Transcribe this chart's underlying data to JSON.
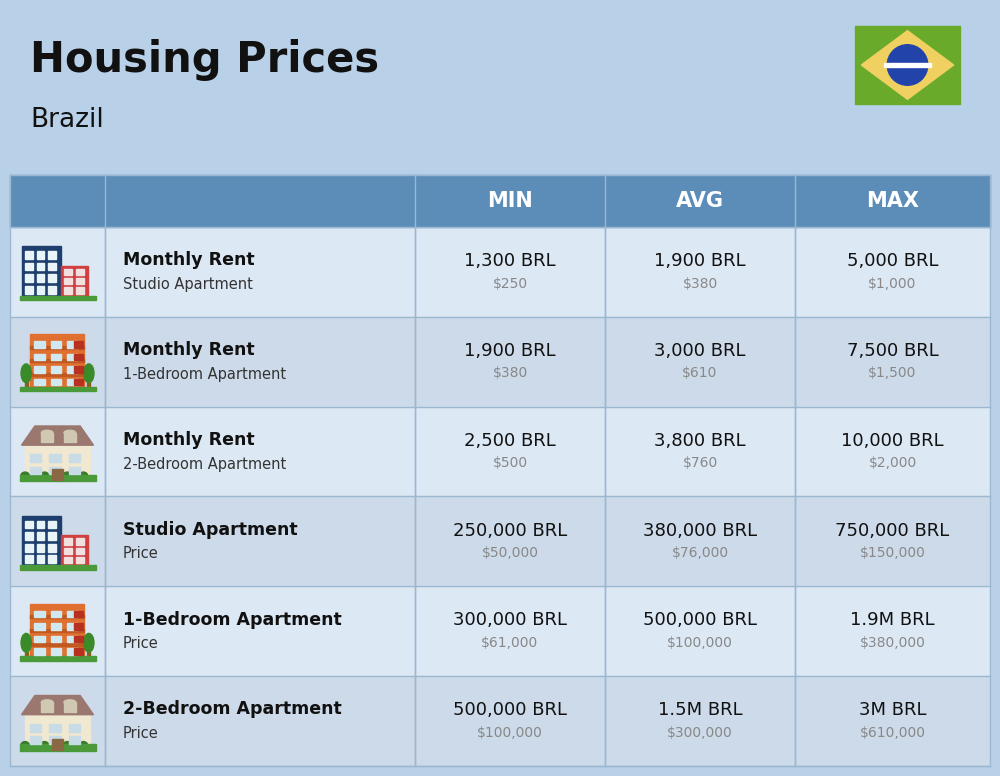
{
  "title": "Housing Prices",
  "subtitle": "Brazil",
  "background_color": "#b8d0e8",
  "header_bg_color": "#5b8db8",
  "header_text_color": "#ffffff",
  "col_divider_color": "#8aaece",
  "columns": [
    "MIN",
    "AVG",
    "MAX"
  ],
  "rows": [
    {
      "label_bold": "Monthly Rent",
      "label_sub": "Studio Apartment",
      "min_brl": "1,300 BRL",
      "min_usd": "$250",
      "avg_brl": "1,900 BRL",
      "avg_usd": "$380",
      "max_brl": "5,000 BRL",
      "max_usd": "$1,000",
      "icon_type": "studio_blue"
    },
    {
      "label_bold": "Monthly Rent",
      "label_sub": "1-Bedroom Apartment",
      "min_brl": "1,900 BRL",
      "min_usd": "$380",
      "avg_brl": "3,000 BRL",
      "avg_usd": "$610",
      "max_brl": "7,500 BRL",
      "max_usd": "$1,500",
      "icon_type": "apt_orange"
    },
    {
      "label_bold": "Monthly Rent",
      "label_sub": "2-Bedroom Apartment",
      "min_brl": "2,500 BRL",
      "min_usd": "$500",
      "avg_brl": "3,800 BRL",
      "avg_usd": "$760",
      "max_brl": "10,000 BRL",
      "max_usd": "$2,000",
      "icon_type": "apt_house"
    },
    {
      "label_bold": "Studio Apartment",
      "label_sub": "Price",
      "min_brl": "250,000 BRL",
      "min_usd": "$50,000",
      "avg_brl": "380,000 BRL",
      "avg_usd": "$76,000",
      "max_brl": "750,000 BRL",
      "max_usd": "$150,000",
      "icon_type": "studio_blue"
    },
    {
      "label_bold": "1-Bedroom Apartment",
      "label_sub": "Price",
      "min_brl": "300,000 BRL",
      "min_usd": "$61,000",
      "avg_brl": "500,000 BRL",
      "avg_usd": "$100,000",
      "max_brl": "1.9M BRL",
      "max_usd": "$380,000",
      "icon_type": "apt_orange"
    },
    {
      "label_bold": "2-Bedroom Apartment",
      "label_sub": "Price",
      "min_brl": "500,000 BRL",
      "min_usd": "$100,000",
      "avg_brl": "1.5M BRL",
      "avg_usd": "$300,000",
      "max_brl": "3M BRL",
      "max_usd": "$610,000",
      "icon_type": "apt_house2"
    }
  ]
}
